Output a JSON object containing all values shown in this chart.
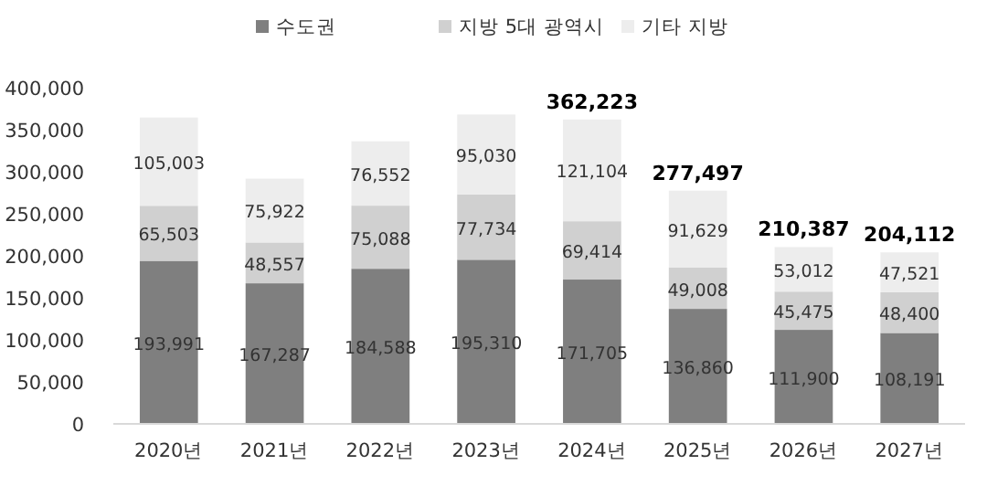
{
  "chart_data": {
    "type": "bar",
    "stacked": true,
    "categories": [
      "2020년",
      "2021년",
      "2022년",
      "2023년",
      "2024년",
      "2025년",
      "2026년",
      "2027년"
    ],
    "series": [
      {
        "name": "수도권",
        "color": "#7f7f7f",
        "values": [
          193991,
          167287,
          184588,
          195310,
          171705,
          136860,
          111900,
          108191
        ],
        "value_labels": [
          "193,991",
          "167,287",
          "184,588",
          "195,310",
          "171,705",
          "136,860",
          "111,900",
          "108,191"
        ]
      },
      {
        "name": "지방 5대 광역시",
        "color": "#d0d0d0",
        "values": [
          65503,
          48557,
          75088,
          77734,
          69414,
          49008,
          45475,
          48400
        ],
        "value_labels": [
          "65,503",
          "48,557",
          "75,088",
          "77,734",
          "69,414",
          "49,008",
          "45,475",
          "48,400"
        ]
      },
      {
        "name": "기타 지방",
        "color": "#ededed",
        "values": [
          105003,
          75922,
          76552,
          95030,
          121104,
          91629,
          53012,
          47521
        ],
        "value_labels": [
          "105,003",
          "75,922",
          "76,552",
          "95,030",
          "121,104",
          "91,629",
          "53,012",
          "47,521"
        ]
      }
    ],
    "totals": [
      null,
      null,
      null,
      null,
      "362,223",
      "277,497",
      "210,387",
      "204,112"
    ],
    "legend": "top",
    "grid": false,
    "ylim": [
      0,
      400000
    ],
    "yticks": [
      {
        "value": 0,
        "label": "0"
      },
      {
        "value": 50000,
        "label": "50,000"
      },
      {
        "value": 100000,
        "label": "100,000"
      },
      {
        "value": 150000,
        "label": "150,000"
      },
      {
        "value": 200000,
        "label": "200,000"
      },
      {
        "value": 250000,
        "label": "250,000"
      },
      {
        "value": 300000,
        "label": "300,000"
      },
      {
        "value": 350000,
        "label": "350,000"
      },
      {
        "value": 400000,
        "label": "400,000"
      }
    ]
  }
}
